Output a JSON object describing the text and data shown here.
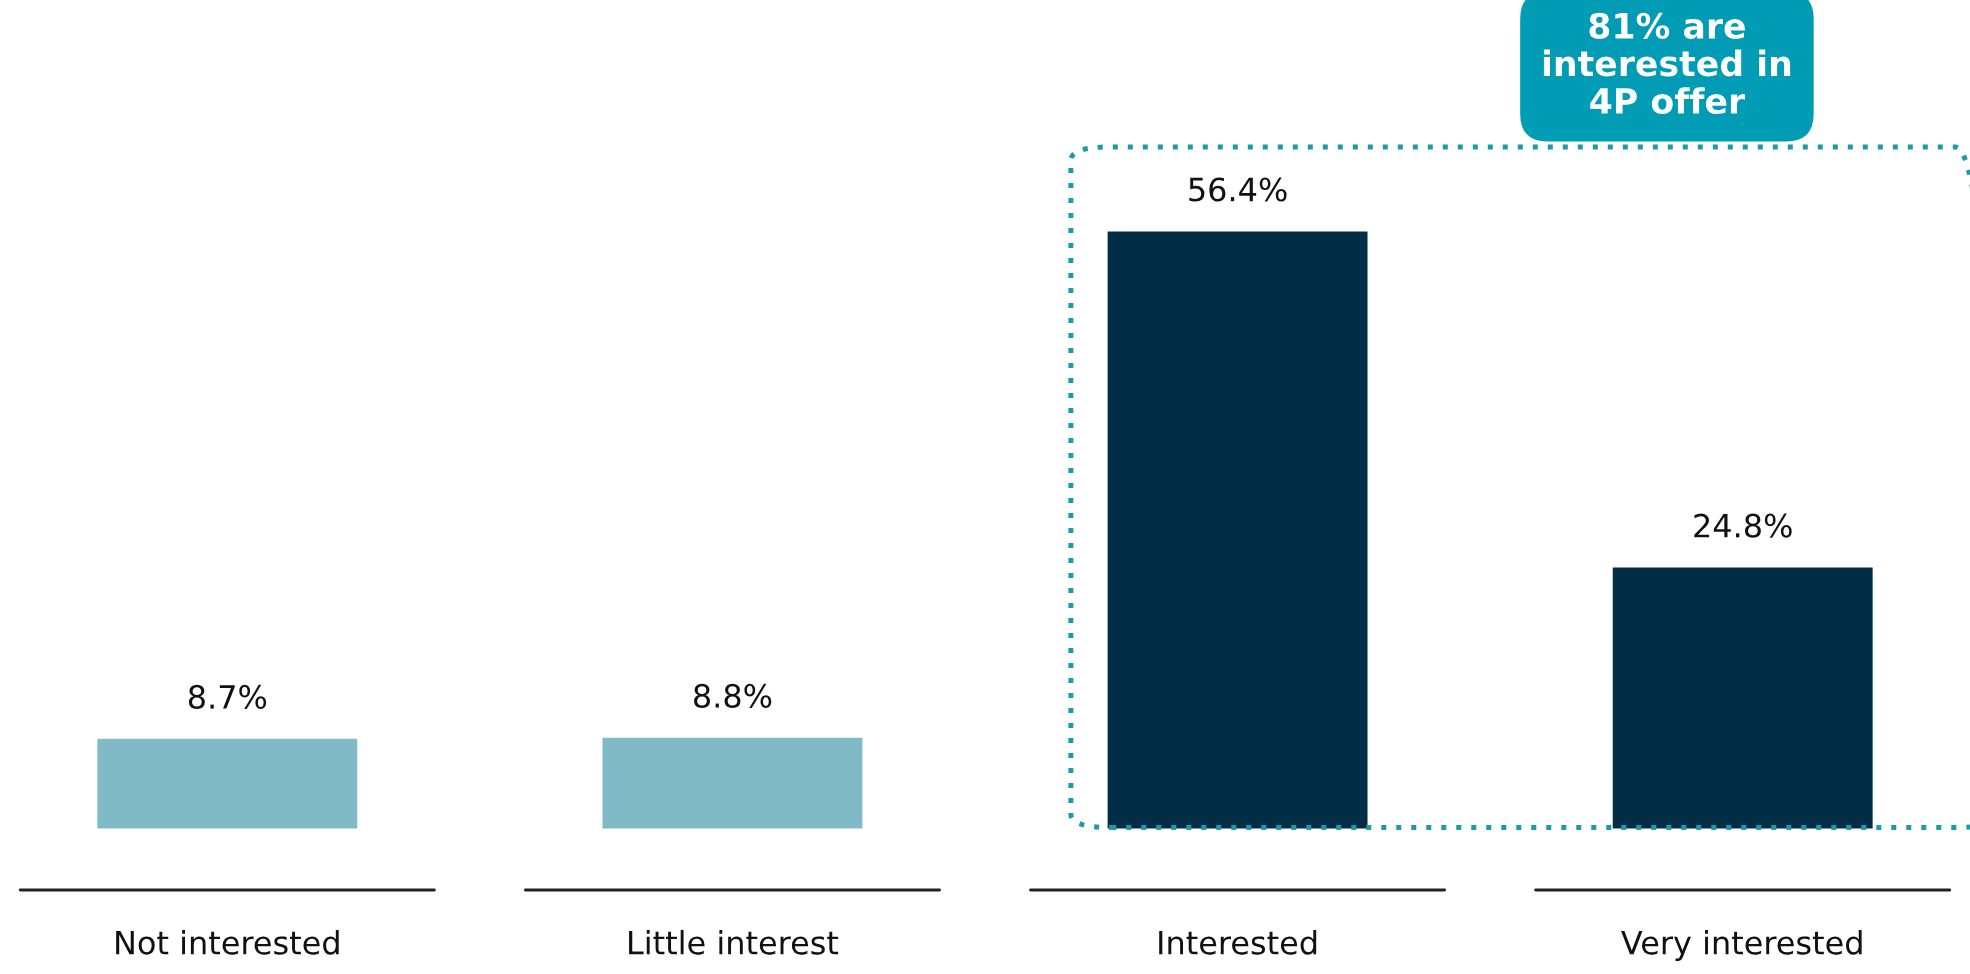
{
  "chart_data": {
    "type": "bar",
    "categories": [
      "Not interested",
      "Little interest",
      "Interested",
      "Very interested"
    ],
    "values": [
      8.7,
      8.8,
      56.4,
      24.8
    ],
    "colors": [
      "#7fbac6",
      "#7fbac6",
      "#022d47",
      "#022d47"
    ],
    "value_labels": [
      "8.7%",
      "8.8%",
      "56.4%",
      "24.8%"
    ],
    "annotations": [
      "81% are\ninterested in\n4P offer"
    ],
    "grid": false,
    "legend": false
  }
}
